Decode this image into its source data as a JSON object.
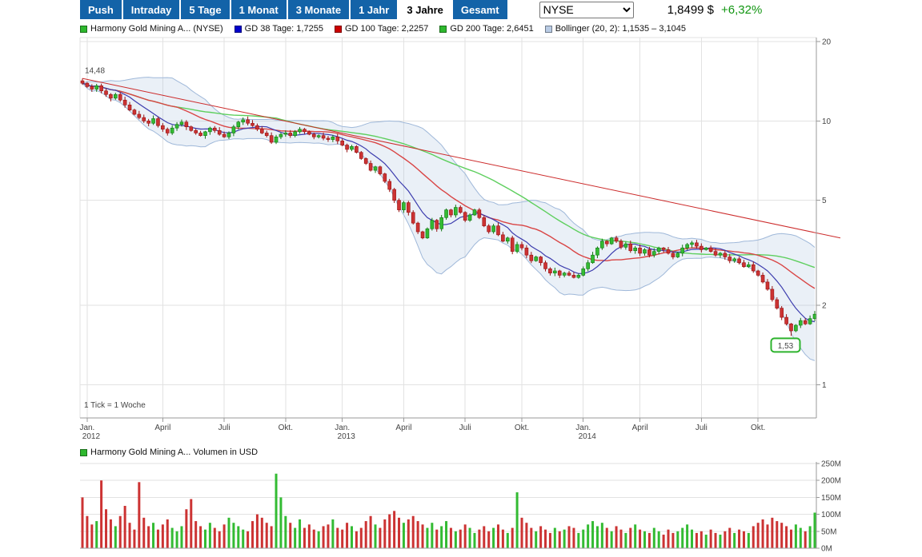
{
  "toolbar": {
    "buttons": [
      {
        "label": "Push"
      },
      {
        "label": "Intraday"
      },
      {
        "label": "5 Tage"
      },
      {
        "label": "1 Monat"
      },
      {
        "label": "3 Monate"
      },
      {
        "label": "1 Jahr"
      },
      {
        "label": "3 Jahre"
      },
      {
        "label": "Gesamt"
      }
    ],
    "active_range": "3 Jahre",
    "exchange": "NYSE",
    "price": "1,8499 $",
    "change": "+6,32%"
  },
  "legend": {
    "items": [
      {
        "label": "Harmony Gold Mining A... (NYSE)",
        "color": "#2eb82e"
      },
      {
        "label": "GD 38 Tage: 1,7255",
        "color": "#0000cc"
      },
      {
        "label": "GD 100 Tage: 2,2257",
        "color": "#cc0000"
      },
      {
        "label": "GD 200 Tage: 2,6451",
        "color": "#2eb82e"
      },
      {
        "label": "Bollinger (20, 2): 1,1535 – 3,1045",
        "color": "#b9cbe4"
      }
    ]
  },
  "volume_legend": {
    "label": "Harmony Gold Mining A... Volumen in USD",
    "color": "#2eb82e"
  },
  "colors": {
    "toolbar_blue": "#1363a8",
    "change_green": "#129612",
    "up": "#33bb33",
    "up_border": "#117711",
    "down": "#cc3333",
    "down_border": "#991111",
    "gd38": "#3c3cae",
    "gd100": "#d94545",
    "gd200": "#5ecf5e",
    "bollinger_line": "#9fb8d9",
    "bollinger_fill": "rgba(160,185,220,0.22)",
    "trend": "#cc2a2a",
    "low_box": "#2db32d",
    "grid": "#e2e2e2",
    "axis": "#9a9a9a"
  },
  "chart_data": {
    "type": "candlestick_with_volume",
    "title": "Harmony Gold Mining ADR — 3 Jahre, NYSE",
    "scale": "log",
    "tick_interval": "1 Woche",
    "y_top": 20,
    "y_ticks": [
      20,
      10,
      5,
      2,
      1
    ],
    "x_ticks": [
      {
        "week": 1,
        "label": "Jan.",
        "year": "2012"
      },
      {
        "week": 17,
        "label": "April"
      },
      {
        "week": 30,
        "label": "Juli"
      },
      {
        "week": 43,
        "label": "Okt."
      },
      {
        "week": 55,
        "label": "Jan.",
        "year": "2013"
      },
      {
        "week": 68,
        "label": "April"
      },
      {
        "week": 81,
        "label": "Juli"
      },
      {
        "week": 93,
        "label": "Okt."
      },
      {
        "week": 106,
        "label": "Jan.",
        "year": "2014"
      },
      {
        "week": 118,
        "label": "April"
      },
      {
        "week": 131,
        "label": "Juli"
      },
      {
        "week": 143,
        "label": "Okt."
      }
    ],
    "first_open": 14.2,
    "start_high": 14.48,
    "low_week": 150,
    "low_value": 1.53,
    "last_close": 1.8499,
    "indicators": {
      "gd38": 1.7255,
      "gd100": 2.2257,
      "gd200": 2.6451,
      "bollinger_low": 1.1535,
      "bollinger_high": 3.1045
    },
    "trendline": {
      "from_price": 14.5,
      "to_price": 3.6,
      "to_x": 1050
    },
    "annotations": {
      "start_high_label": "14,48",
      "low_label": "1,53",
      "tick_note": "1 Tick = 1 Woche"
    },
    "weekly_closes": [
      13.9,
      13.5,
      13.2,
      13.6,
      13.0,
      12.6,
      12.2,
      12.6,
      12.0,
      11.5,
      11.0,
      10.6,
      10.3,
      10.0,
      9.8,
      10.2,
      9.6,
      9.3,
      9.0,
      9.4,
      9.7,
      9.9,
      9.5,
      9.2,
      9.0,
      8.8,
      9.1,
      9.4,
      9.2,
      8.9,
      8.7,
      9.0,
      9.5,
      9.9,
      10.1,
      9.8,
      9.6,
      9.3,
      9.0,
      8.8,
      8.3,
      8.7,
      8.9,
      9.0,
      8.8,
      9.1,
      9.3,
      9.1,
      8.9,
      8.7,
      8.8,
      8.6,
      8.5,
      8.7,
      8.4,
      8.1,
      7.8,
      8.0,
      7.6,
      7.2,
      6.9,
      6.5,
      6.7,
      6.3,
      5.9,
      5.5,
      5.0,
      4.6,
      4.9,
      4.5,
      4.1,
      3.8,
      3.6,
      3.9,
      4.2,
      3.9,
      4.3,
      4.6,
      4.4,
      4.7,
      4.5,
      4.2,
      4.4,
      4.6,
      4.3,
      4.0,
      3.8,
      4.0,
      3.7,
      3.5,
      3.6,
      3.2,
      3.4,
      3.3,
      3.1,
      2.95,
      3.05,
      2.9,
      2.75,
      2.65,
      2.7,
      2.6,
      2.65,
      2.6,
      2.55,
      2.6,
      2.75,
      2.9,
      3.1,
      3.3,
      3.5,
      3.42,
      3.6,
      3.5,
      3.32,
      3.42,
      3.22,
      3.3,
      3.15,
      3.25,
      3.1,
      3.2,
      3.3,
      3.25,
      3.15,
      3.05,
      3.15,
      3.3,
      3.4,
      3.45,
      3.35,
      3.25,
      3.3,
      3.2,
      3.1,
      3.15,
      3.05,
      2.95,
      3.0,
      2.9,
      2.8,
      2.85,
      2.7,
      2.6,
      2.45,
      2.3,
      2.1,
      1.95,
      1.8,
      1.7,
      1.6,
      1.68,
      1.75,
      1.7,
      1.78,
      1.85
    ],
    "volume_unit": "M USD",
    "volume_ticks": [
      {
        "v": 250,
        "label": "250M"
      },
      {
        "v": 200,
        "label": "200M"
      },
      {
        "v": 150,
        "label": "150M"
      },
      {
        "v": 100,
        "label": "100M"
      },
      {
        "v": 50,
        "label": "50M"
      },
      {
        "v": 0,
        "label": "0M"
      }
    ],
    "volumes_musd": [
      150,
      95,
      70,
      80,
      200,
      115,
      85,
      65,
      95,
      125,
      75,
      55,
      195,
      90,
      65,
      75,
      55,
      70,
      85,
      60,
      50,
      65,
      115,
      145,
      80,
      65,
      55,
      75,
      60,
      50,
      70,
      90,
      75,
      65,
      55,
      50,
      80,
      100,
      90,
      75,
      65,
      220,
      150,
      95,
      75,
      60,
      85,
      60,
      70,
      55,
      50,
      65,
      70,
      85,
      60,
      55,
      75,
      65,
      50,
      60,
      80,
      95,
      70,
      60,
      85,
      100,
      110,
      90,
      75,
      85,
      95,
      80,
      70,
      60,
      75,
      55,
      65,
      80,
      60,
      50,
      55,
      70,
      60,
      45,
      55,
      65,
      50,
      60,
      70,
      55,
      45,
      60,
      165,
      90,
      75,
      60,
      50,
      65,
      55,
      45,
      60,
      50,
      55,
      65,
      60,
      45,
      55,
      70,
      80,
      65,
      75,
      60,
      50,
      65,
      55,
      45,
      60,
      70,
      55,
      50,
      45,
      60,
      50,
      40,
      55,
      45,
      50,
      60,
      70,
      55,
      45,
      50,
      40,
      55,
      45,
      40,
      50,
      60,
      45,
      55,
      50,
      45,
      65,
      75,
      85,
      70,
      90,
      80,
      75,
      65,
      55,
      70,
      60,
      50,
      65,
      105
    ]
  }
}
